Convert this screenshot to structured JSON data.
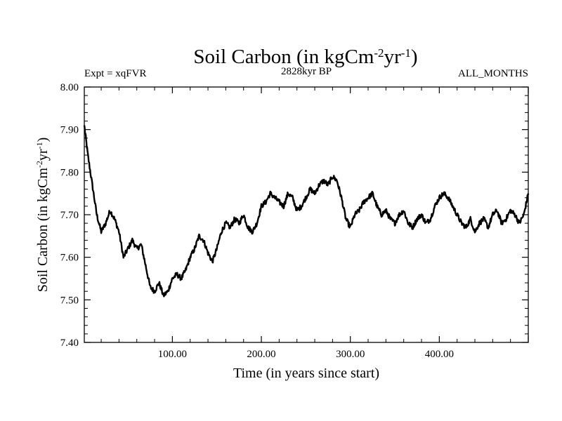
{
  "chart_data": {
    "type": "line",
    "title_main": "Soil Carbon (in kgCm",
    "title_sup1": "-2",
    "title_mid": "yr",
    "title_sup2": "-1",
    "title_end": ")",
    "subtitle_left": "Expt = xqFVR",
    "subtitle_center": "2828kyr BP",
    "subtitle_right": "ALL_MONTHS",
    "xlabel": "Time (in years since start)",
    "ylabel_main": "Soil Carbon (in kgCm",
    "ylabel_sup1": "-2",
    "ylabel_mid": "yr",
    "ylabel_sup2": "-1",
    "ylabel_end": ")",
    "xlim": [
      1,
      500
    ],
    "ylim": [
      7.4,
      8.0
    ],
    "xticks": [
      100,
      200,
      300,
      400
    ],
    "xtick_labels": [
      "100.00",
      "200.00",
      "300.00",
      "400.00"
    ],
    "yticks": [
      7.4,
      7.5,
      7.6,
      7.7,
      7.8,
      7.9,
      8.0
    ],
    "ytick_labels": [
      "7.40",
      "7.50",
      "7.60",
      "7.70",
      "7.80",
      "7.90",
      "8.00"
    ],
    "series": [
      {
        "name": "Soil Carbon",
        "color": "#000000",
        "x": [
          1,
          5,
          10,
          15,
          20,
          25,
          30,
          35,
          40,
          45,
          50,
          55,
          60,
          65,
          70,
          75,
          80,
          85,
          90,
          95,
          100,
          105,
          110,
          115,
          120,
          125,
          130,
          135,
          140,
          145,
          150,
          155,
          160,
          165,
          170,
          175,
          180,
          185,
          190,
          195,
          200,
          205,
          210,
          215,
          220,
          225,
          230,
          235,
          240,
          245,
          250,
          255,
          260,
          265,
          270,
          275,
          280,
          285,
          290,
          295,
          300,
          305,
          310,
          315,
          320,
          325,
          330,
          335,
          340,
          345,
          350,
          355,
          360,
          365,
          370,
          375,
          380,
          385,
          390,
          395,
          400,
          405,
          410,
          415,
          420,
          425,
          430,
          435,
          440,
          445,
          450,
          455,
          460,
          465,
          470,
          475,
          480,
          485,
          490,
          495,
          500
        ],
        "values": [
          7.91,
          7.84,
          7.77,
          7.7,
          7.66,
          7.68,
          7.71,
          7.69,
          7.66,
          7.6,
          7.62,
          7.64,
          7.62,
          7.63,
          7.58,
          7.53,
          7.52,
          7.54,
          7.51,
          7.52,
          7.55,
          7.56,
          7.55,
          7.57,
          7.6,
          7.62,
          7.65,
          7.64,
          7.61,
          7.59,
          7.62,
          7.66,
          7.68,
          7.67,
          7.69,
          7.68,
          7.7,
          7.67,
          7.66,
          7.68,
          7.72,
          7.73,
          7.75,
          7.74,
          7.73,
          7.72,
          7.75,
          7.74,
          7.71,
          7.72,
          7.74,
          7.76,
          7.75,
          7.77,
          7.78,
          7.77,
          7.79,
          7.78,
          7.74,
          7.69,
          7.67,
          7.7,
          7.71,
          7.73,
          7.74,
          7.75,
          7.72,
          7.7,
          7.71,
          7.69,
          7.68,
          7.7,
          7.71,
          7.68,
          7.67,
          7.69,
          7.7,
          7.68,
          7.69,
          7.72,
          7.74,
          7.75,
          7.74,
          7.72,
          7.7,
          7.68,
          7.67,
          7.69,
          7.66,
          7.68,
          7.69,
          7.67,
          7.7,
          7.71,
          7.68,
          7.69,
          7.71,
          7.7,
          7.68,
          7.7,
          7.75
        ]
      }
    ]
  }
}
